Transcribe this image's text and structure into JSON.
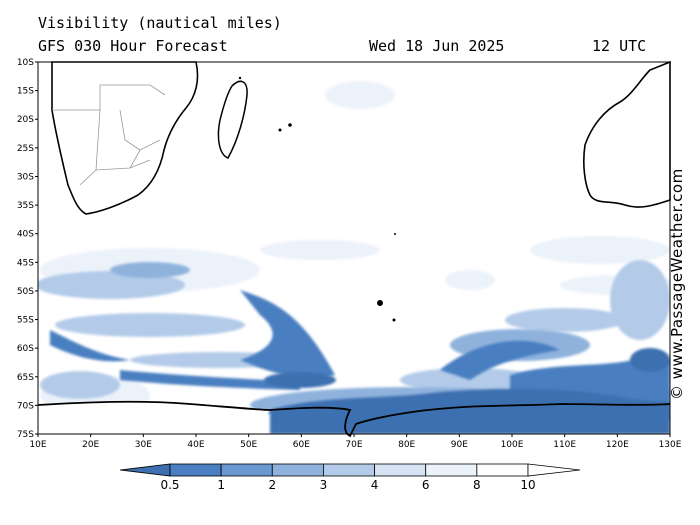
{
  "header": {
    "title": "Visibility (nautical miles)",
    "model": "GFS 030 Hour Forecast",
    "date": "Wed 18 Jun 2025",
    "time": "12 UTC"
  },
  "credit": "© www.PassageWeather.com",
  "map": {
    "lat_labels": [
      "10S",
      "15S",
      "20S",
      "25S",
      "30S",
      "35S",
      "40S",
      "45S",
      "50S",
      "55S",
      "60S",
      "65S",
      "70S",
      "75S"
    ],
    "lon_labels": [
      "10E",
      "20E",
      "30E",
      "40E",
      "50E",
      "60E",
      "70E",
      "80E",
      "90E",
      "100E",
      "110E",
      "120E",
      "130E"
    ],
    "lat_range": [
      -10,
      -75
    ],
    "lon_range": [
      10,
      130
    ],
    "land_color": "#ffffff",
    "coast_color": "#000000",
    "border_color": "#999999"
  },
  "colorbar": {
    "labels": [
      "0.5",
      "1",
      "2",
      "3",
      "4",
      "6",
      "8",
      "10"
    ],
    "colors": [
      "#3e6fb0",
      "#4a7fc1",
      "#6a98d0",
      "#8fb2dd",
      "#b3cbe9",
      "#d6e3f4",
      "#ecf2fa",
      "#ffffff"
    ]
  }
}
